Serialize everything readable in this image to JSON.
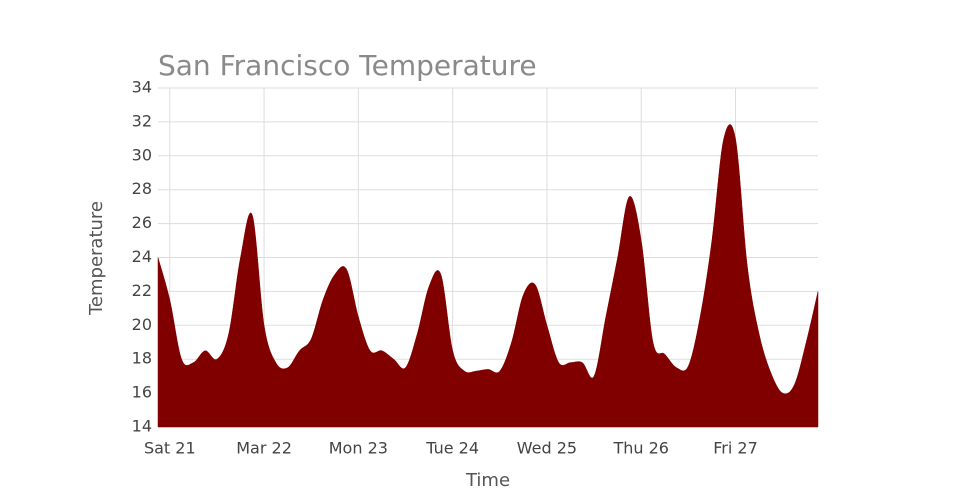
{
  "chart_data": {
    "type": "area",
    "title": "San Francisco Temperature",
    "x_label": "Time",
    "y_label": "Temperature",
    "color": "#800000",
    "grid": true,
    "x": [
      -0.125,
      0,
      0.125,
      0.25,
      0.375,
      0.5,
      0.625,
      0.75,
      0.875,
      1,
      1.125,
      1.25,
      1.375,
      1.5,
      1.625,
      1.75,
      1.875,
      2,
      2.125,
      2.25,
      2.375,
      2.5,
      2.625,
      2.75,
      2.875,
      3,
      3.125,
      3.25,
      3.375,
      3.5,
      3.625,
      3.75,
      3.875,
      4,
      4.125,
      4.25,
      4.375,
      4.5,
      4.625,
      4.75,
      4.875,
      5,
      5.125,
      5.25,
      5.375,
      5.5,
      5.625,
      5.75,
      5.875,
      6,
      6.125,
      6.25,
      6.375,
      6.5,
      6.625,
      6.75,
      6.875
    ],
    "values": [
      24,
      21.5,
      18,
      17.8,
      18.5,
      18,
      19.5,
      24,
      26.5,
      20,
      17.8,
      17.5,
      18.5,
      19.2,
      21.5,
      23,
      23.3,
      20.5,
      18.5,
      18.5,
      18,
      17.5,
      19.5,
      22.3,
      23,
      18.5,
      17.3,
      17.3,
      17.4,
      17.3,
      19,
      21.8,
      22.4,
      20,
      17.8,
      17.8,
      17.8,
      17,
      20.5,
      24,
      27.6,
      25,
      19,
      18.3,
      17.5,
      17.6,
      20.5,
      25,
      31,
      31,
      23.5,
      19.5,
      17.2,
      16,
      16.5,
      19,
      22
    ],
    "xlim": [
      -0.125,
      6.875
    ],
    "xticks": [
      {
        "value": 0,
        "label": "Sat 21"
      },
      {
        "value": 1,
        "label": "Mar 22"
      },
      {
        "value": 2,
        "label": "Mon 23"
      },
      {
        "value": 3,
        "label": "Tue 24"
      },
      {
        "value": 4,
        "label": "Wed 25"
      },
      {
        "value": 5,
        "label": "Thu 26"
      },
      {
        "value": 6,
        "label": "Fri 27"
      }
    ],
    "ylim": [
      14,
      34
    ],
    "yticks": [
      14,
      16,
      18,
      20,
      22,
      24,
      26,
      28,
      30,
      32,
      34
    ]
  }
}
